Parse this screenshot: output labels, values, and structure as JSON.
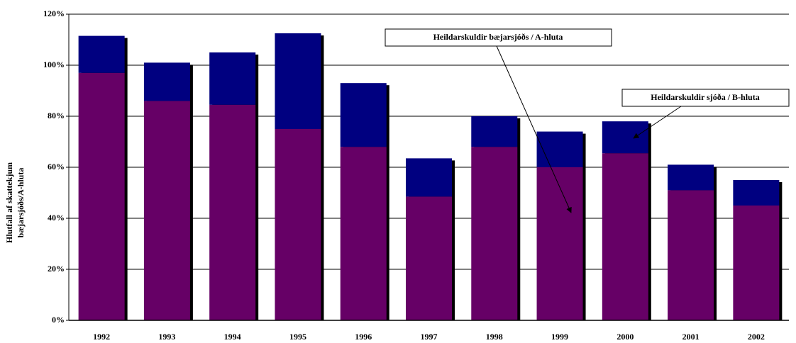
{
  "chart_data": {
    "type": "stacked_bar",
    "y_label": [
      "Hlutfall af skattekjum",
      "bæjarsjóðs/A-hluta"
    ],
    "categories": [
      "1992",
      "1993",
      "1994",
      "1995",
      "1996",
      "1997",
      "1998",
      "1999",
      "2000",
      "2001",
      "2002"
    ],
    "series": [
      {
        "name": "Heildarskuldir bæjarsjóðs / A-hluta",
        "color": "#660066",
        "values": [
          97,
          86,
          84.5,
          75,
          68,
          48.5,
          68,
          60,
          65.5,
          51,
          45
        ]
      },
      {
        "name": "Heildarskuldir sjóða / B-hluta",
        "color": "#000080",
        "values": [
          14.5,
          15,
          20.5,
          37.5,
          25,
          15,
          12,
          14,
          12.5,
          10,
          10
        ]
      }
    ],
    "ylim": [
      0,
      120
    ],
    "yticks": [
      {
        "value": 0,
        "label": "0%"
      },
      {
        "value": 20,
        "label": "20%"
      },
      {
        "value": 40,
        "label": "40%"
      },
      {
        "value": 60,
        "label": "60%"
      },
      {
        "value": 80,
        "label": "80%"
      },
      {
        "value": 100,
        "label": "100%"
      },
      {
        "value": 120,
        "label": "120%"
      }
    ],
    "grid": true
  }
}
